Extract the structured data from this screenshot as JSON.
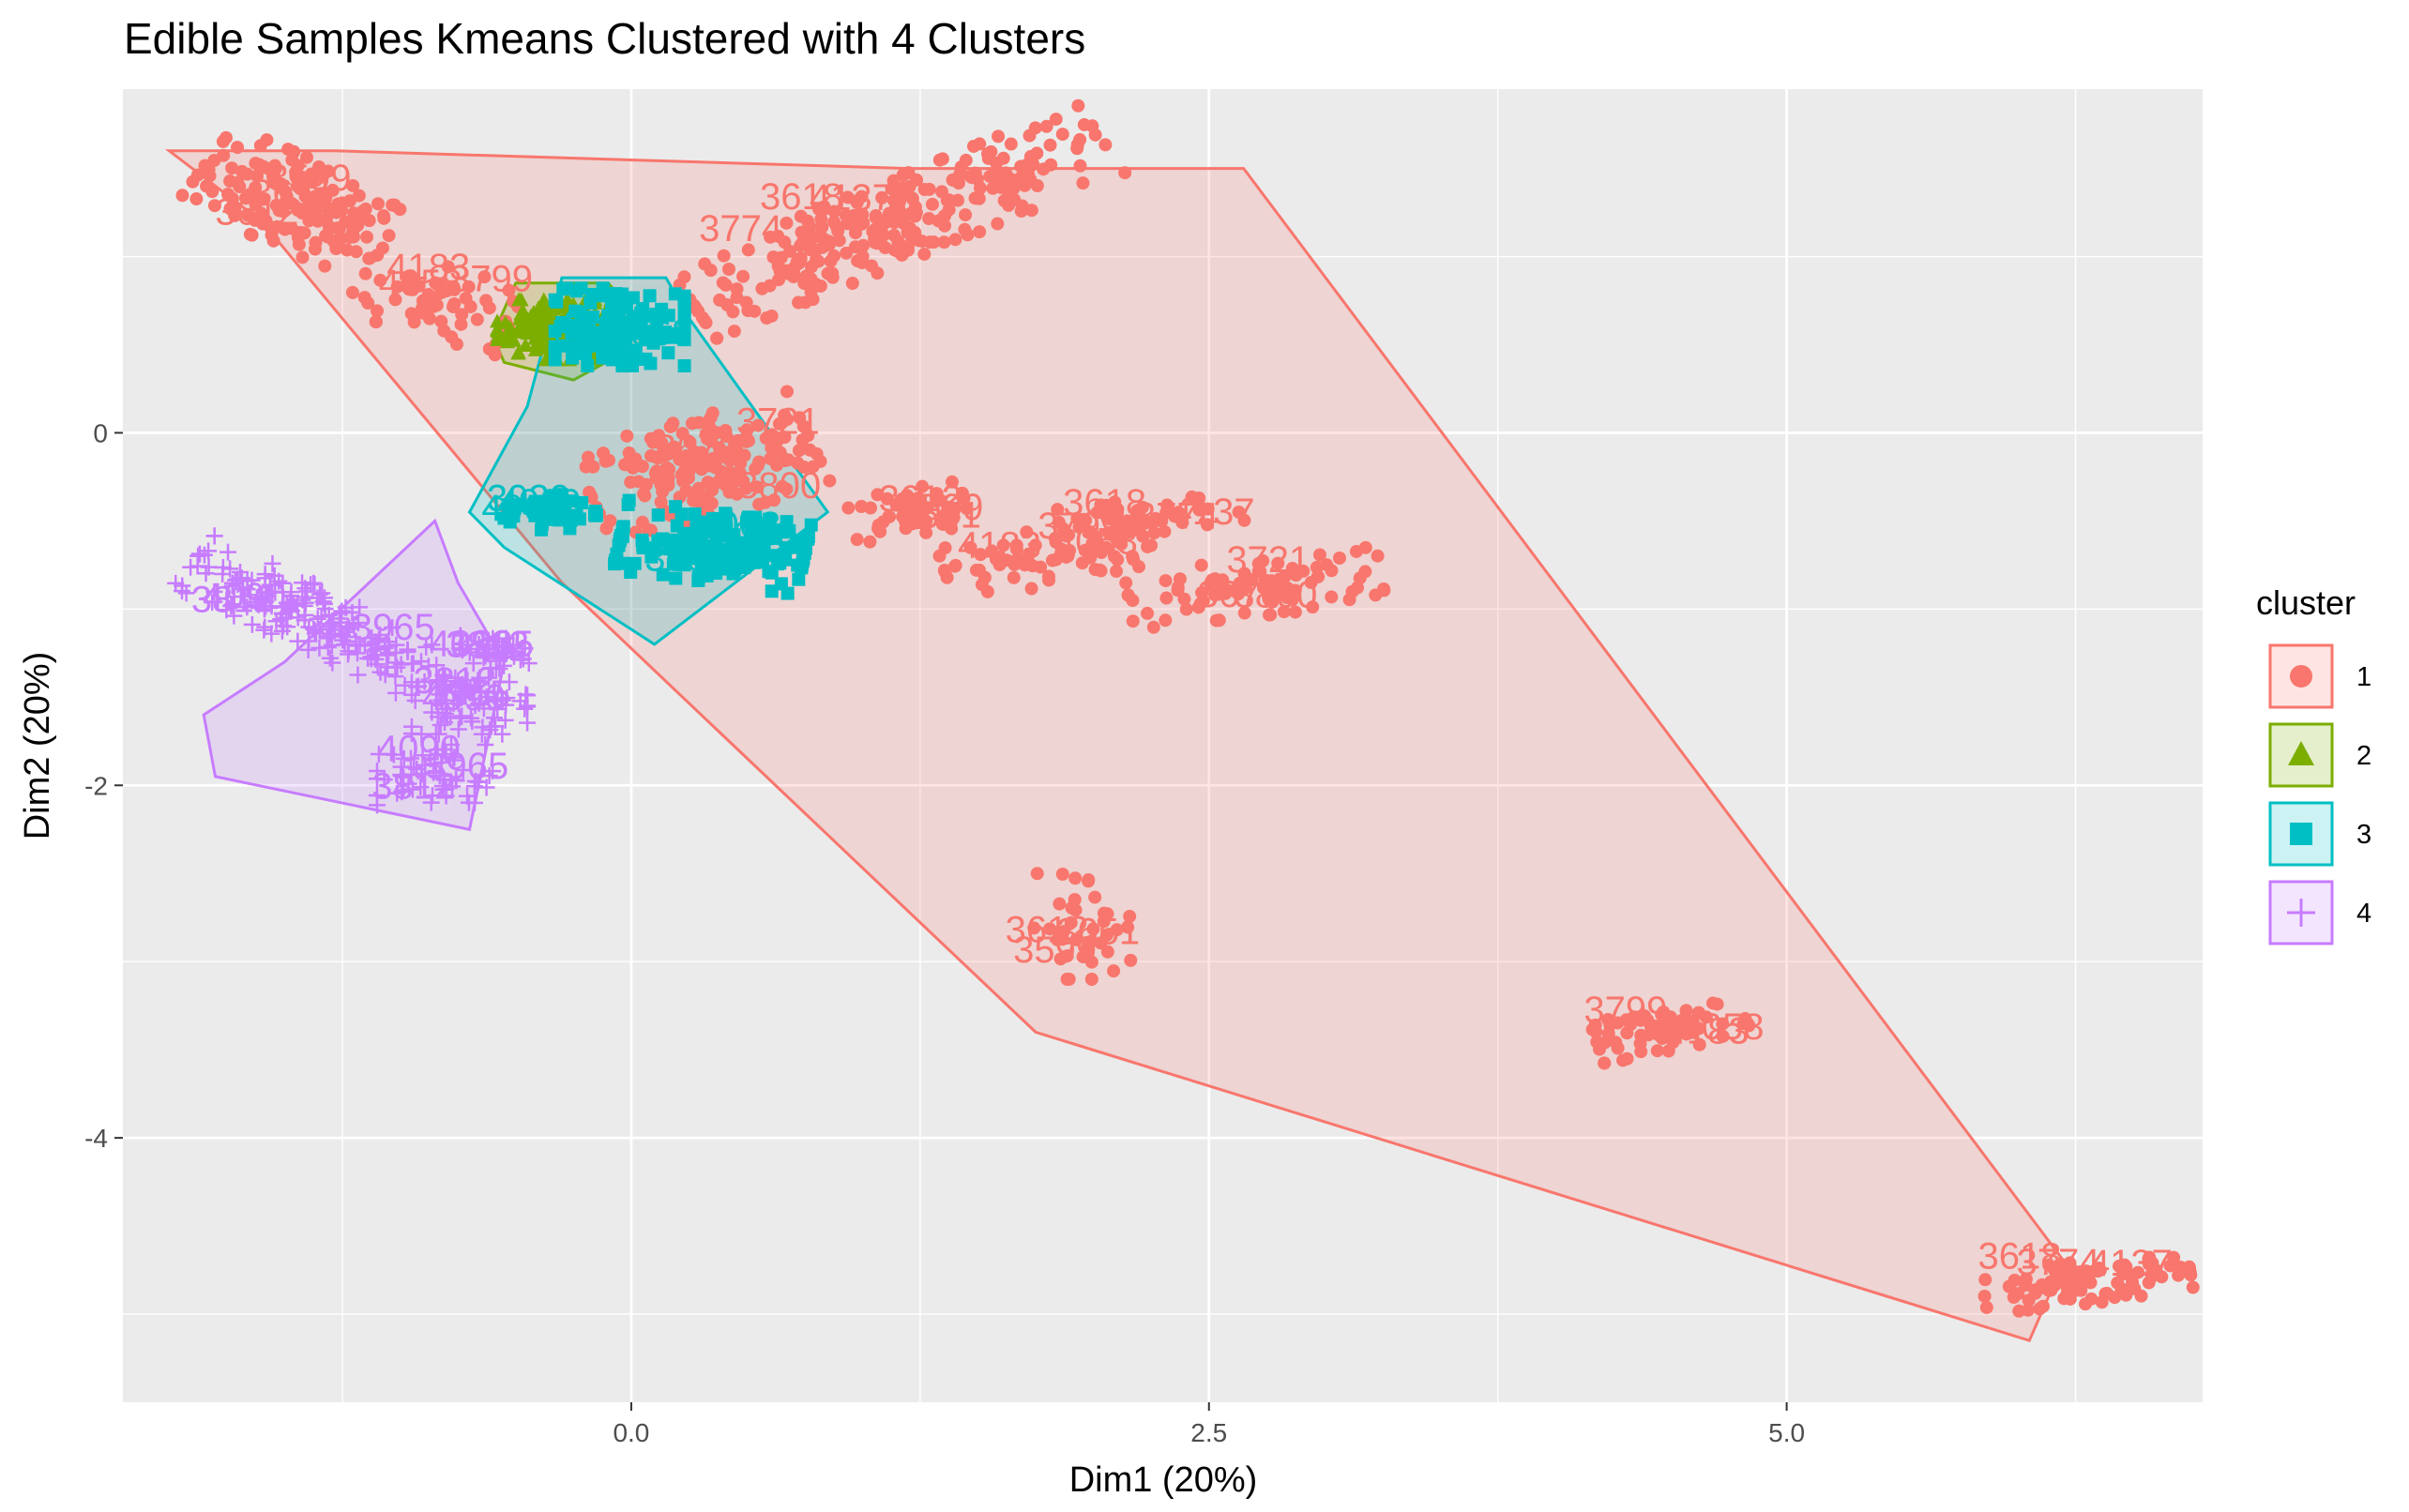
{
  "chart_data": {
    "type": "scatter",
    "title": "Edible Samples Kmeans Clustered with 4 Clusters",
    "xlabel": "Dim1 (20%)",
    "ylabel": "Dim2 (20%)",
    "xlim": [
      -2.2,
      6.8
    ],
    "ylim": [
      -5.5,
      1.95
    ],
    "x_ticks": [
      {
        "value": 0,
        "label": "0.0"
      },
      {
        "value": 2.5,
        "label": "2.5"
      },
      {
        "value": 5,
        "label": "5.0"
      }
    ],
    "y_ticks": [
      {
        "value": 0,
        "label": "0"
      },
      {
        "value": -2,
        "label": "-2"
      },
      {
        "value": -4,
        "label": "-4"
      }
    ],
    "grid": true,
    "legend": {
      "title": "cluster",
      "position": "right"
    },
    "series": [
      {
        "name": "1",
        "color": "#F8766D",
        "shape": "circle",
        "hull": [
          [
            -2.0,
            1.6
          ],
          [
            -1.28,
            1.6
          ],
          [
            1.2,
            1.5
          ],
          [
            2.65,
            1.5
          ],
          [
            6.2,
            -4.7
          ],
          [
            6.05,
            -5.15
          ],
          [
            1.75,
            -3.4
          ],
          [
            -0.3,
            -0.85
          ],
          [
            -1.6,
            1.2
          ]
        ],
        "clusters": [
          {
            "cx": -1.45,
            "cy": 1.3,
            "rx": 0.45,
            "ry": 0.25,
            "angle": -30,
            "n": 160
          },
          {
            "cx": -0.85,
            "cy": 0.75,
            "rx": 0.35,
            "ry": 0.2,
            "angle": -20,
            "n": 70
          },
          {
            "cx": 1.15,
            "cy": 1.2,
            "rx": 1.0,
            "ry": 0.22,
            "angle": 28,
            "n": 280
          },
          {
            "cx": 0.3,
            "cy": -0.2,
            "rx": 0.5,
            "ry": 0.28,
            "angle": 20,
            "n": 200
          },
          {
            "cx": 1.2,
            "cy": -0.45,
            "rx": 0.25,
            "ry": 0.13,
            "angle": 12,
            "n": 60
          },
          {
            "cx": 1.8,
            "cy": -0.7,
            "rx": 0.45,
            "ry": 0.16,
            "angle": 15,
            "n": 90
          },
          {
            "cx": 2.25,
            "cy": -0.48,
            "rx": 0.4,
            "ry": 0.1,
            "angle": 5,
            "n": 40
          },
          {
            "cx": 2.7,
            "cy": -0.88,
            "rx": 0.55,
            "ry": 0.16,
            "angle": 8,
            "n": 90
          },
          {
            "cx": 1.95,
            "cy": -2.8,
            "rx": 0.22,
            "ry": 0.3,
            "angle": 0,
            "n": 40
          },
          {
            "cx": 4.5,
            "cy": -3.38,
            "rx": 0.33,
            "ry": 0.12,
            "angle": 15,
            "n": 70
          },
          {
            "cx": 6.3,
            "cy": -4.82,
            "rx": 0.45,
            "ry": 0.12,
            "angle": 8,
            "n": 90
          }
        ],
        "labels": [
          "3599",
          "3612",
          "3651",
          "4183",
          "3799",
          "4058",
          "3774",
          "4137",
          "3618",
          "3800",
          "3721",
          "3670"
        ]
      },
      {
        "name": "2",
        "color": "#7CAE00",
        "shape": "triangle",
        "hull": [
          [
            -0.6,
            0.55
          ],
          [
            -0.5,
            0.85
          ],
          [
            -0.1,
            0.85
          ],
          [
            0.1,
            0.55
          ],
          [
            -0.25,
            0.3
          ],
          [
            -0.55,
            0.4
          ]
        ],
        "clusters": [
          {
            "cx": -0.32,
            "cy": 0.58,
            "rx": 0.26,
            "ry": 0.17,
            "angle": 0,
            "n": 150
          }
        ],
        "labels": []
      },
      {
        "name": "3",
        "color": "#00BFC4",
        "shape": "square",
        "hull": [
          [
            -0.3,
            0.88
          ],
          [
            0.15,
            0.88
          ],
          [
            0.25,
            0.65
          ],
          [
            0.85,
            -0.45
          ],
          [
            0.5,
            -0.8
          ],
          [
            0.2,
            -1.1
          ],
          [
            0.1,
            -1.2
          ],
          [
            -0.55,
            -0.65
          ],
          [
            -0.7,
            -0.45
          ],
          [
            -0.45,
            0.15
          ]
        ],
        "clusters": [
          {
            "cx": -0.05,
            "cy": 0.6,
            "rx": 0.28,
            "ry": 0.22,
            "angle": 0,
            "n": 140
          },
          {
            "cx": 0.35,
            "cy": -0.65,
            "rx": 0.4,
            "ry": 0.2,
            "angle": -10,
            "n": 160
          },
          {
            "cx": -0.35,
            "cy": -0.45,
            "rx": 0.2,
            "ry": 0.1,
            "angle": 0,
            "n": 40
          }
        ],
        "labels": [
          "4060",
          "3930",
          "4068"
        ]
      },
      {
        "name": "4",
        "color": "#C77CFF",
        "shape": "cross",
        "hull": [
          [
            -1.85,
            -1.6
          ],
          [
            -1.8,
            -1.95
          ],
          [
            -0.7,
            -2.25
          ],
          [
            -0.55,
            -1.3
          ],
          [
            -0.75,
            -0.85
          ],
          [
            -0.85,
            -0.5
          ],
          [
            -1.5,
            -1.3
          ]
        ],
        "clusters": [
          {
            "cx": -1.3,
            "cy": -1.1,
            "rx": 0.7,
            "ry": 0.17,
            "angle": -32,
            "n": 220
          },
          {
            "cx": -0.6,
            "cy": -1.25,
            "rx": 0.18,
            "ry": 0.1,
            "angle": 0,
            "n": 40
          },
          {
            "cx": -0.7,
            "cy": -1.55,
            "rx": 0.25,
            "ry": 0.16,
            "angle": 0,
            "n": 60
          },
          {
            "cx": -0.85,
            "cy": -1.95,
            "rx": 0.25,
            "ry": 0.18,
            "angle": 0,
            "n": 60
          }
        ],
        "labels": [
          "4090",
          "3965",
          "3812"
        ]
      }
    ]
  }
}
